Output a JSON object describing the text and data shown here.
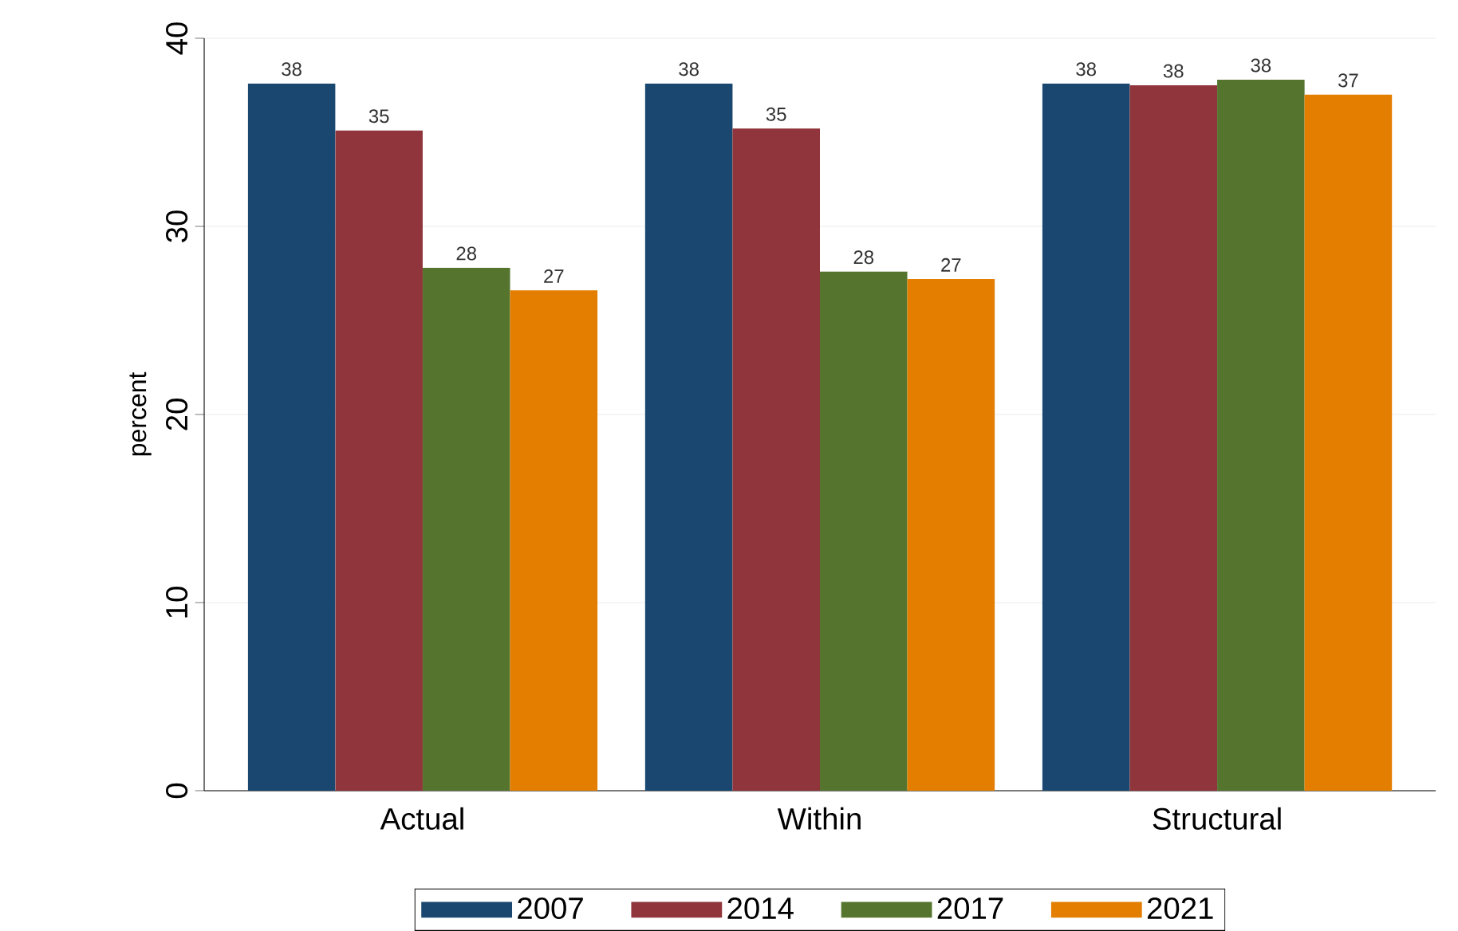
{
  "chart_data": {
    "type": "bar",
    "ylabel": "percent",
    "categories": [
      "Actual",
      "Within",
      "Structural"
    ],
    "series": [
      {
        "name": "2007",
        "color": "#1a476f",
        "values": [
          37.6,
          37.6,
          37.6
        ],
        "value_labels": [
          "38",
          "38",
          "38"
        ]
      },
      {
        "name": "2014",
        "color": "#90353b",
        "values": [
          35.1,
          35.2,
          37.5
        ],
        "value_labels": [
          "35",
          "35",
          "38"
        ]
      },
      {
        "name": "2017",
        "color": "#55752f",
        "values": [
          27.8,
          27.6,
          37.8
        ],
        "value_labels": [
          "28",
          "28",
          "38"
        ]
      },
      {
        "name": "2021",
        "color": "#e37e00",
        "values": [
          26.6,
          27.2,
          37.0
        ],
        "value_labels": [
          "27",
          "27",
          "37"
        ]
      }
    ],
    "ylim": [
      0,
      40
    ],
    "yticks": [
      0,
      10,
      20,
      30,
      40
    ],
    "grid": "y",
    "legend": "bottom"
  }
}
